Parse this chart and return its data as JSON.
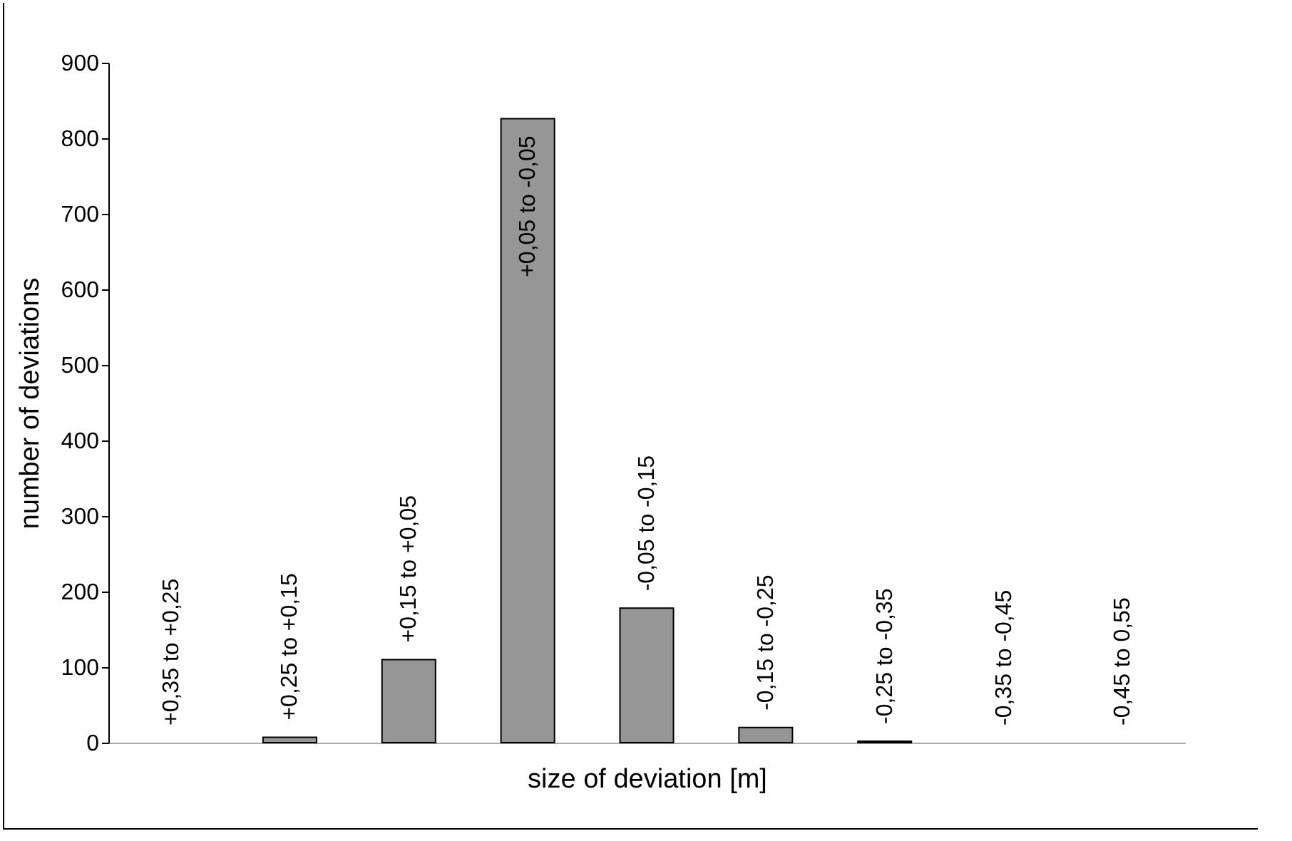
{
  "chart_data": {
    "type": "bar",
    "xlabel": "size of deviation [m]",
    "ylabel": "number of deviations",
    "categories": [
      "+0,35 to +0,25",
      "+0,25 to +0,15",
      "+0,15 to +0,05",
      "+0,05 to -0,05",
      "-0,05 to -0,15",
      "-0,15 to -0,25",
      "-0,25 to -0,35",
      "-0,35 to -0,45",
      "-0,45 to 0,55"
    ],
    "values": [
      0,
      7,
      110,
      826,
      178,
      20,
      2,
      0,
      0
    ],
    "color": "#969696",
    "ylim": [
      0,
      900
    ],
    "yticks": [
      0,
      100,
      200,
      300,
      400,
      500,
      600,
      700,
      800,
      900
    ],
    "grid": false,
    "tick_labels": "y"
  }
}
